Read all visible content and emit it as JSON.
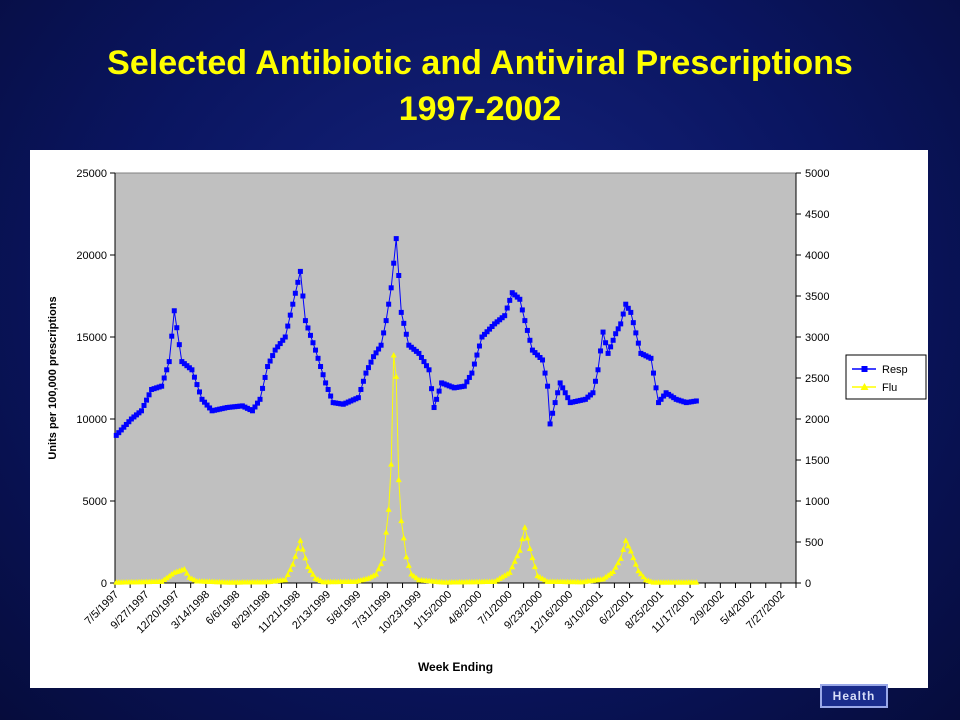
{
  "slide": {
    "title_line1": "Selected Antibiotic and Antiviral Prescriptions",
    "title_line2": "1997-2002",
    "badge_text": "Health",
    "title_color": "#ffff00",
    "background_color": "#0a1560"
  },
  "chart_data": {
    "type": "line",
    "xlabel": "Week Ending",
    "ylabel_left": "Units per 100,000 prescriptions",
    "ylim_left": [
      0,
      25000
    ],
    "ylim_right": [
      0,
      5000
    ],
    "yticks_left": [
      "0",
      "5000",
      "10000",
      "15000",
      "20000",
      "25000"
    ],
    "yticks_right": [
      "0",
      "500",
      "1000",
      "1500",
      "2000",
      "2500",
      "3000",
      "3500",
      "4000",
      "4500",
      "5000"
    ],
    "x_tick_labels": [
      "7/5/1997",
      "9/27/1997",
      "12/20/1997",
      "3/14/1998",
      "6/6/1998",
      "8/29/1998",
      "11/21/1998",
      "2/13/1999",
      "5/8/1999",
      "7/31/1999",
      "10/23/1999",
      "1/15/2000",
      "4/8/2000",
      "7/1/2000",
      "9/23/2000",
      "12/16/2000",
      "3/10/2001",
      "6/2/2001",
      "8/25/2001",
      "11/17/2001",
      "2/9/2002",
      "5/4/2002",
      "7/27/2002"
    ],
    "x_tick_weeks": [
      0,
      12,
      24,
      36,
      48,
      60,
      72,
      84,
      96,
      108,
      120,
      132,
      144,
      156,
      168,
      180,
      192,
      204,
      216,
      228,
      240,
      252,
      264
    ],
    "n_weeks": 270,
    "plot_background": "#c0c0c0",
    "legend_position": "right",
    "grid": false,
    "series": [
      {
        "name": "Resp",
        "axis": "left",
        "color": "#0000ff",
        "marker": "square",
        "anchors": [
          [
            0,
            9000
          ],
          [
            6,
            10000
          ],
          [
            10,
            10500
          ],
          [
            14,
            11800
          ],
          [
            18,
            12000
          ],
          [
            21,
            13500
          ],
          [
            23,
            16600
          ],
          [
            26,
            13500
          ],
          [
            30,
            13000
          ],
          [
            34,
            11200
          ],
          [
            38,
            10500
          ],
          [
            44,
            10700
          ],
          [
            50,
            10800
          ],
          [
            54,
            10500
          ],
          [
            57,
            11200
          ],
          [
            60,
            13200
          ],
          [
            63,
            14200
          ],
          [
            67,
            15000
          ],
          [
            70,
            17000
          ],
          [
            73,
            19000
          ],
          [
            75,
            16000
          ],
          [
            79,
            14200
          ],
          [
            83,
            12200
          ],
          [
            86,
            11000
          ],
          [
            90,
            10900
          ],
          [
            96,
            11300
          ],
          [
            99,
            12800
          ],
          [
            102,
            13800
          ],
          [
            105,
            14500
          ],
          [
            107,
            16000
          ],
          [
            109,
            18000
          ],
          [
            111,
            21000
          ],
          [
            113,
            16500
          ],
          [
            116,
            14500
          ],
          [
            120,
            14000
          ],
          [
            124,
            13000
          ],
          [
            126,
            10700
          ],
          [
            129,
            12200
          ],
          [
            134,
            11900
          ],
          [
            138,
            12000
          ],
          [
            141,
            12800
          ],
          [
            145,
            15000
          ],
          [
            150,
            15800
          ],
          [
            154,
            16300
          ],
          [
            157,
            17700
          ],
          [
            160,
            17300
          ],
          [
            162,
            16000
          ],
          [
            165,
            14200
          ],
          [
            169,
            13600
          ],
          [
            171,
            12000
          ],
          [
            172,
            9700
          ],
          [
            174,
            11000
          ],
          [
            176,
            12200
          ],
          [
            180,
            11000
          ],
          [
            186,
            11200
          ],
          [
            189,
            11600
          ],
          [
            191,
            13000
          ],
          [
            193,
            15300
          ],
          [
            195,
            14000
          ],
          [
            198,
            15200
          ],
          [
            200,
            15800
          ],
          [
            202,
            17000
          ],
          [
            204,
            16500
          ],
          [
            208,
            14000
          ],
          [
            212,
            13700
          ],
          [
            215,
            11000
          ],
          [
            218,
            11600
          ],
          [
            222,
            11200
          ],
          [
            226,
            11000
          ],
          [
            230,
            11100
          ]
        ]
      },
      {
        "name": "Flu",
        "axis": "right",
        "color": "#ffff00",
        "marker": "triangle",
        "anchors": [
          [
            0,
            10
          ],
          [
            18,
            20
          ],
          [
            23,
            130
          ],
          [
            27,
            170
          ],
          [
            29,
            70
          ],
          [
            32,
            25
          ],
          [
            45,
            10
          ],
          [
            60,
            15
          ],
          [
            67,
            40
          ],
          [
            70,
            230
          ],
          [
            73,
            520
          ],
          [
            76,
            200
          ],
          [
            79,
            60
          ],
          [
            82,
            15
          ],
          [
            95,
            20
          ],
          [
            100,
            60
          ],
          [
            103,
            110
          ],
          [
            106,
            300
          ],
          [
            107,
            620
          ],
          [
            108,
            900
          ],
          [
            109,
            1450
          ],
          [
            110,
            2780
          ],
          [
            111,
            2520
          ],
          [
            112,
            1260
          ],
          [
            113,
            760
          ],
          [
            114,
            550
          ],
          [
            115,
            320
          ],
          [
            117,
            110
          ],
          [
            120,
            40
          ],
          [
            130,
            10
          ],
          [
            150,
            20
          ],
          [
            156,
            130
          ],
          [
            160,
            400
          ],
          [
            162,
            680
          ],
          [
            164,
            420
          ],
          [
            167,
            90
          ],
          [
            171,
            20
          ],
          [
            185,
            15
          ],
          [
            193,
            50
          ],
          [
            197,
            140
          ],
          [
            200,
            300
          ],
          [
            202,
            520
          ],
          [
            204,
            390
          ],
          [
            207,
            150
          ],
          [
            210,
            40
          ],
          [
            213,
            10
          ],
          [
            230,
            10
          ]
        ]
      }
    ]
  }
}
